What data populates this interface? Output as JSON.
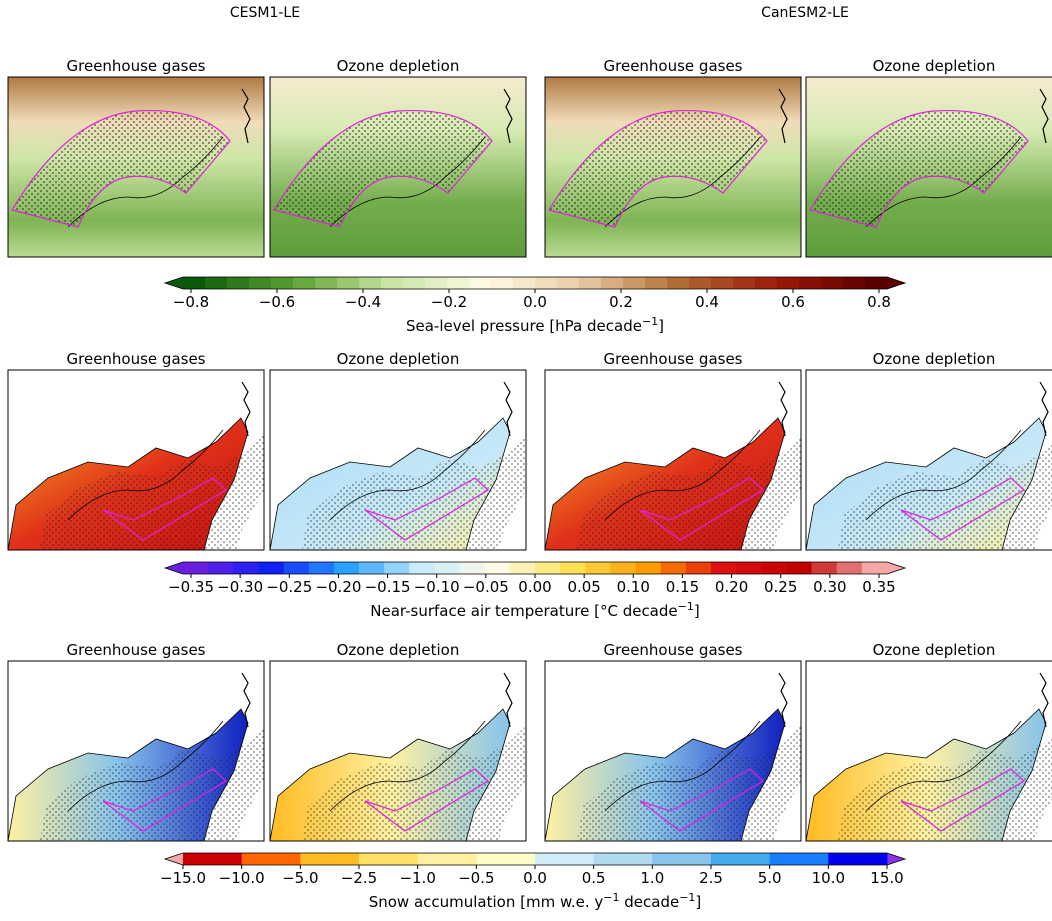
{
  "columns": [
    "CESM1-LE",
    "CanESM2-LE"
  ],
  "rows": [
    {
      "panels": [
        "Greenhouse gases",
        "Ozone depletion",
        "Greenhouse gases",
        "Ozone depletion"
      ],
      "colorbar": {
        "ticks": [
          "−0.8",
          "−0.6",
          "−0.4",
          "−0.2",
          "0.0",
          "0.2",
          "0.4",
          "0.6",
          "0.8"
        ],
        "label_parts": [
          {
            "text": "Sea-level pressure [hPa decade"
          },
          {
            "sup": "−1"
          },
          {
            "text": "]"
          }
        ]
      }
    },
    {
      "panels": [
        "Greenhouse gases",
        "Ozone depletion",
        "Greenhouse gases",
        "Ozone depletion"
      ],
      "colorbar": {
        "ticks": [
          "−0.35",
          "−0.30",
          "−0.25",
          "−0.20",
          "−0.15",
          "−0.10",
          "−0.05",
          "0.00",
          "0.05",
          "0.10",
          "0.15",
          "0.20",
          "0.25",
          "0.30",
          "0.35"
        ],
        "label_parts": [
          {
            "text": "Near-surface air temperature [°C decade"
          },
          {
            "sup": "−1"
          },
          {
            "text": "]"
          }
        ]
      }
    },
    {
      "panels": [
        "Greenhouse gases",
        "Ozone depletion",
        "Greenhouse gases",
        "Ozone depletion"
      ],
      "colorbar": {
        "ticks": [
          "−15.0",
          "−10.0",
          "−5.0",
          "−2.5",
          "−1.0",
          "−0.5",
          "0.0",
          "0.5",
          "1.0",
          "2.5",
          "5.0",
          "10.0",
          "15.0"
        ],
        "label_parts": [
          {
            "text": "Snow accumulation [mm w.e. y"
          },
          {
            "sup": "−1"
          },
          {
            "text": " decade"
          },
          {
            "sup": "−1"
          },
          {
            "text": "]"
          }
        ]
      }
    }
  ]
}
